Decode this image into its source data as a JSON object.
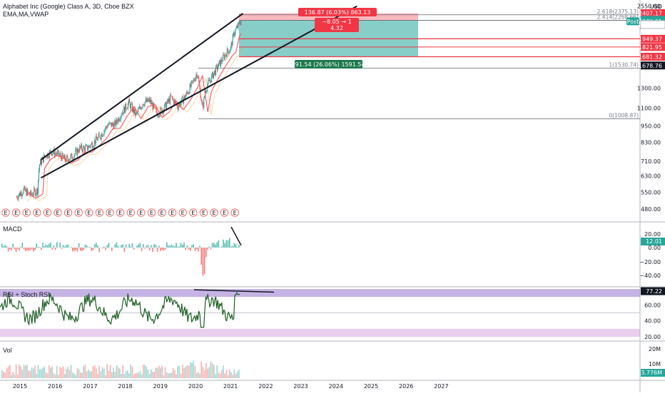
{
  "header": {
    "title": "Alphabet Inc (Google) Class A, 3D, Cboe BZX",
    "indicators": "EMA,MA,VWAP"
  },
  "price_axis": {
    "currency": "USD",
    "ticks": [
      "2550.00",
      "2270.30",
      "1949.37",
      "1821.95",
      "1681.32",
      "1678.76",
      "1300.00",
      "1100.00",
      "950.00",
      "830.00",
      "710.00",
      "630.00",
      "550.00",
      "480.00"
    ],
    "tags": [
      {
        "label": "2407.17",
        "value": 2407.17,
        "color": "#f23645"
      },
      {
        "label": "2278.35",
        "value": 2278.35,
        "color": "#26a69a"
      },
      {
        "label": "2276.91",
        "value": 2276.91,
        "color": "#26a69a",
        "prefix": "Post"
      },
      {
        "label": "2270.30",
        "value": 2270.3,
        "color": "#ffffff"
      },
      {
        "label": "1949.37",
        "value": 1949.37,
        "color": "#f23645"
      },
      {
        "label": "1821.95",
        "value": 1821.95,
        "color": "#f23645"
      },
      {
        "label": "1681.32",
        "value": 1681.32,
        "color": "#f23645"
      },
      {
        "label": "1678.76",
        "value": 1678.76,
        "color": "#131722"
      }
    ]
  },
  "fib_levels": [
    {
      "label": "2.618(2375.13)",
      "value": 2375.13
    },
    {
      "label": "2.414(2268.66)",
      "value": 2268.66
    },
    {
      "label": "1(1530.74)",
      "value": 1530.74
    },
    {
      "label": "0(1008.87)",
      "value": 1008.87
    }
  ],
  "position_tool": {
    "target_label": "136.87 (6.03%) 863.13",
    "ratio_line1": "−8.05 → 1",
    "ratio_line2": "4.32",
    "stop_label": "591.54 (26.06%) 1591.54",
    "entry": 1949.37,
    "stop": 1681.32,
    "target": 2407.17,
    "target_color": "#f23645",
    "profit_color": "#26a69a"
  },
  "earnings_marker": "E",
  "x_axis": {
    "labels": [
      "2015",
      "2016",
      "2017",
      "2018",
      "2019",
      "2020",
      "2021",
      "2022",
      "2023",
      "2024",
      "2025",
      "2026",
      "2027"
    ]
  },
  "macd": {
    "title": "MACD",
    "ticks": [
      "20.00",
      "0.00",
      "−20.00",
      "−40.00"
    ],
    "tag": {
      "label": "12.01",
      "value": 12.01,
      "color": "#26a69a"
    }
  },
  "rsi": {
    "title": "RSI + Stoch RSI",
    "ticks": [
      "60.00",
      "40.00",
      "20.00"
    ],
    "tag": {
      "label": "77.22",
      "value": 77.22,
      "color": "#131722"
    }
  },
  "volume": {
    "title": "Vol",
    "ticks": [
      "20M",
      "10M"
    ],
    "tag": {
      "label": "3.776M",
      "value": 3.776,
      "color": "#26a69a"
    }
  },
  "chart_data": {
    "type": "line",
    "series": [
      {
        "name": "Price",
        "x": [
          2014.9,
          2015.1,
          2015.3,
          2015.5,
          2015.55,
          2015.7,
          2015.9,
          2016.1,
          2016.3,
          2016.5,
          2016.7,
          2016.9,
          2017.1,
          2017.3,
          2017.5,
          2017.7,
          2017.9,
          2018.1,
          2018.3,
          2018.5,
          2018.7,
          2018.9,
          2019.1,
          2019.3,
          2019.5,
          2019.7,
          2019.9,
          2020.05,
          2020.2,
          2020.3,
          2020.5,
          2020.7,
          2020.9,
          2021.0,
          2021.1,
          2021.2,
          2021.3
        ],
        "values": [
          530,
          560,
          540,
          560,
          690,
          740,
          770,
          750,
          720,
          740,
          790,
          790,
          830,
          880,
          960,
          960,
          1060,
          1150,
          1040,
          1150,
          1170,
          1050,
          1100,
          1200,
          1120,
          1210,
          1340,
          1480,
          1100,
          1300,
          1450,
          1600,
          1750,
          1800,
          2050,
          2150,
          2270
        ]
      }
    ],
    "channel_upper": {
      "from": [
        2015.6,
        720
      ],
      "to": [
        2021.35,
        2400
      ]
    },
    "channel_lower": {
      "from": [
        2015.6,
        620
      ],
      "to": [
        2024.6,
        2550
      ]
    },
    "xlim": [
      2014.85,
      2027.6
    ],
    "ylim": [
      460,
      2560
    ],
    "yscale": "log",
    "grid": false
  }
}
